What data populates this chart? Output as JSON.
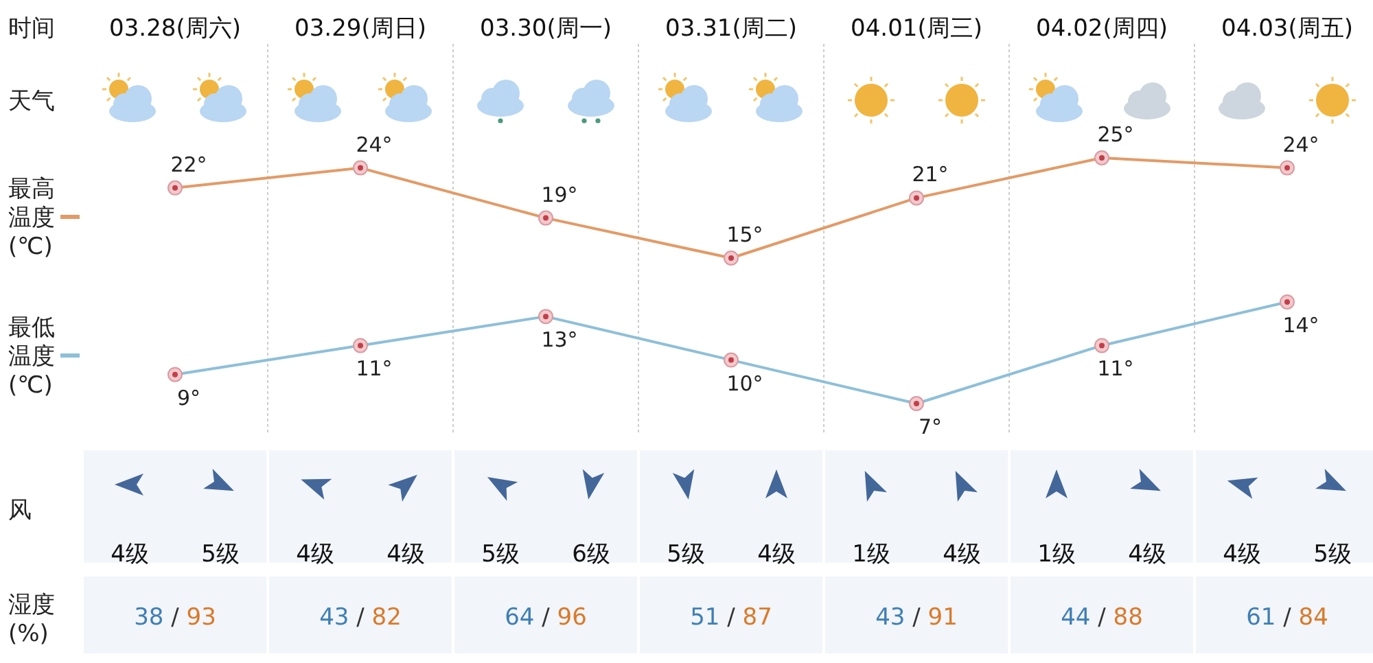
{
  "chart_data": [
    {
      "type": "line",
      "categories": [
        "03.28(周六)",
        "03.29(周日)",
        "03.30(周一)",
        "03.31(周二)",
        "04.01(周三)",
        "04.02(周四)",
        "04.03(周五)"
      ],
      "series": [
        {
          "name": "最高温度(℃)",
          "color": "#e39a66",
          "values": [
            22,
            24,
            19,
            15,
            21,
            25,
            24
          ],
          "value_labels": [
            "22°",
            "24°",
            "19°",
            "15°",
            "21°",
            "25°",
            "24°"
          ]
        }
      ],
      "marker": "circle",
      "line_style": "solid",
      "grid": "x",
      "annotations": [
        "时间",
        "天气",
        "风",
        "湿度(%)",
        "4级",
        "5级",
        "4级",
        "4级",
        "5级",
        "6级",
        "5级",
        "4级",
        "1级",
        "4级",
        "1级",
        "4级",
        "4级",
        "5级",
        "38 / 93",
        "43 / 82",
        "64 / 96",
        "51 / 87",
        "43 / 91",
        "44 / 88",
        "61 / 84"
      ]
    },
    {
      "type": "line",
      "categories": [
        null,
        null,
        null,
        null,
        null,
        null,
        null
      ],
      "series": [
        {
          "name": "最低温度(℃)",
          "color": "#8dbfd9",
          "values": [
            9,
            11,
            13,
            10,
            7,
            11,
            14
          ],
          "value_labels": [
            "9°",
            "11°",
            "13°",
            "10°",
            "7°",
            "11°",
            "14°"
          ]
        }
      ],
      "marker": "circle",
      "line_style": "solid",
      "grid": "x"
    }
  ]
}
